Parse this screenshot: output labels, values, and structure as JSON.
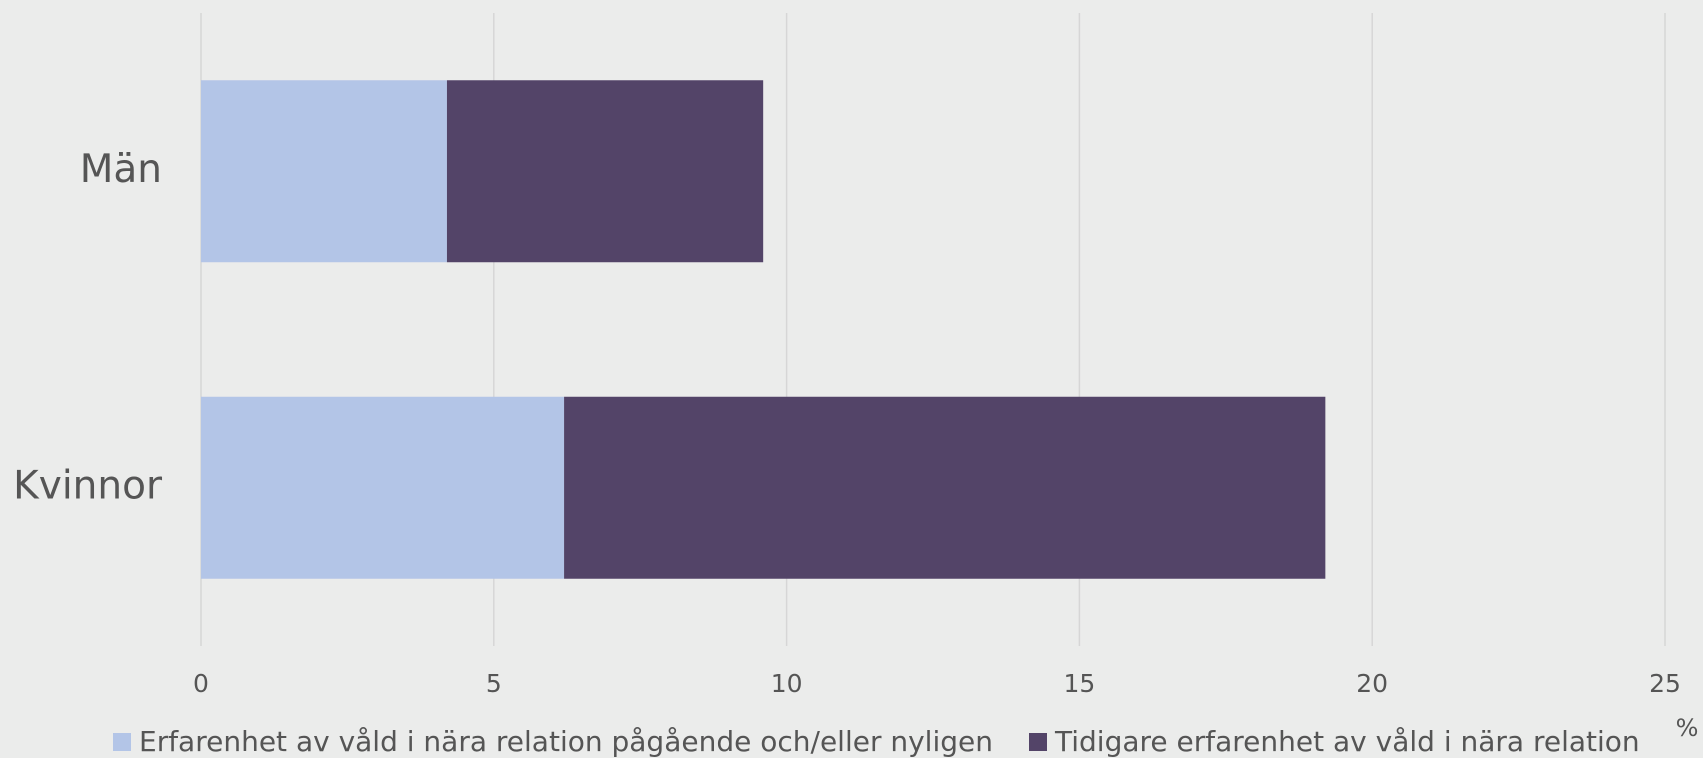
{
  "chart_data": {
    "type": "stacked_barh",
    "categories": [
      "Män",
      "Kvinnor"
    ],
    "series": [
      {
        "name": "Erfarenhet av våld i nära relation pågående och/eller nyligen",
        "color": "#b3c5e7",
        "values": [
          4.2,
          6.2
        ]
      },
      {
        "name": "Tidigare erfarenhet av våld i nära relation",
        "color": "#534468",
        "values": [
          5.4,
          13.0
        ]
      }
    ],
    "xlim": [
      0,
      25
    ],
    "xticks": [
      0,
      5,
      10,
      15,
      20,
      25
    ],
    "x_label": "%",
    "grid": true,
    "legend": "bottom"
  }
}
